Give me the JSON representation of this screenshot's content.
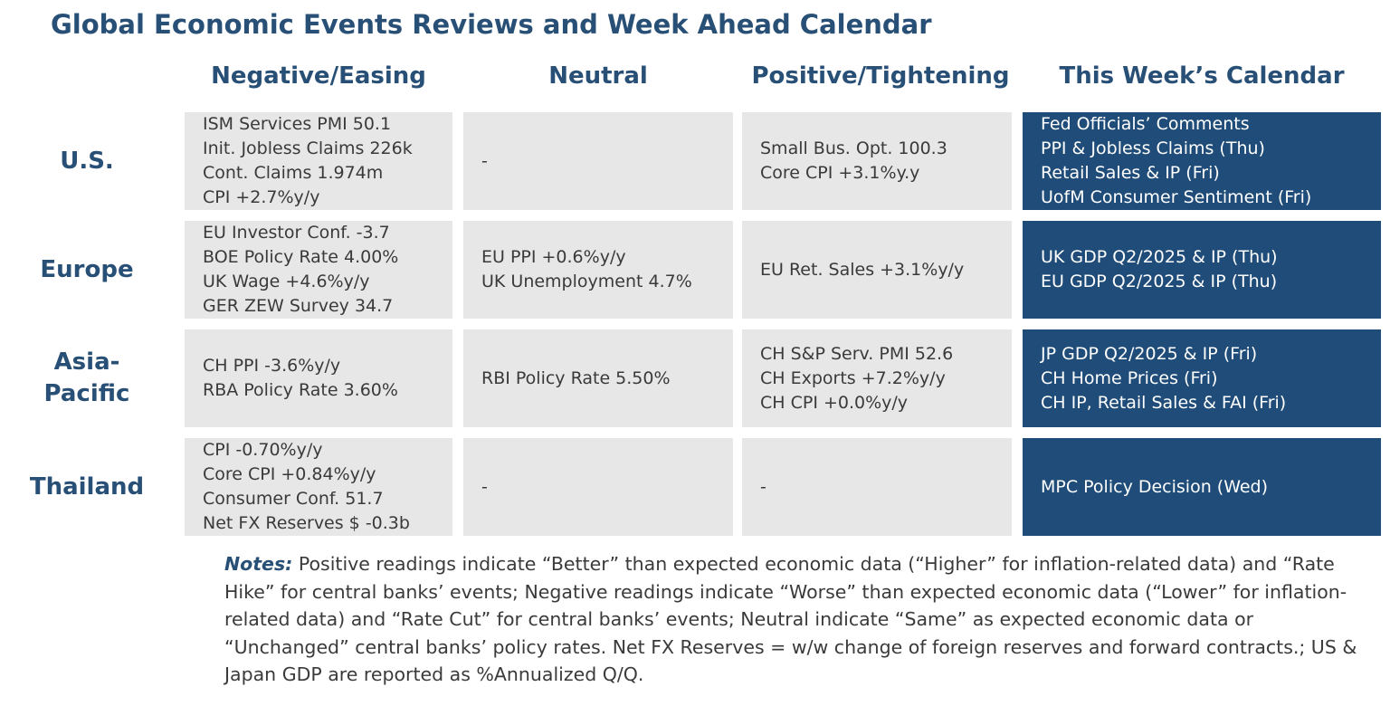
{
  "title": "Global Economic Events Reviews and Week Ahead Calendar",
  "columns": {
    "negative": "Negative/Easing",
    "neutral": "Neutral",
    "positive": "Positive/Tightening",
    "calendar": "This Week’s Calendar"
  },
  "rows": {
    "us": {
      "label": "U.S.",
      "negative": [
        "ISM Services PMI 50.1",
        "Init. Jobless Claims 226k",
        "Cont. Claims 1.974m",
        "CPI +2.7%y/y"
      ],
      "neutral": [
        "-"
      ],
      "positive": [
        "Small Bus. Opt. 100.3",
        "Core CPI +3.1%y.y"
      ],
      "calendar": [
        "Fed Officials’ Comments",
        "PPI & Jobless Claims (Thu)",
        "Retail Sales & IP (Fri)",
        "UofM Consumer Sentiment (Fri)"
      ]
    },
    "europe": {
      "label": "Europe",
      "negative": [
        "EU Investor Conf. -3.7",
        "BOE Policy Rate 4.00%",
        "UK Wage +4.6%y/y",
        "GER ZEW Survey 34.7"
      ],
      "neutral": [
        "EU PPI +0.6%y/y",
        "UK Unemployment 4.7%"
      ],
      "positive": [
        "EU Ret. Sales +3.1%y/y"
      ],
      "calendar": [
        "UK GDP Q2/2025 & IP (Thu)",
        "EU GDP Q2/2025 & IP (Thu)"
      ]
    },
    "asia": {
      "label_line1": "Asia-",
      "label_line2": "Pacific",
      "negative": [
        "CH PPI -3.6%y/y",
        "RBA Policy Rate 3.60%"
      ],
      "neutral": [
        "RBI Policy Rate 5.50%"
      ],
      "positive": [
        "CH S&P Serv. PMI 52.6",
        "CH Exports +7.2%y/y",
        "CH CPI +0.0%y/y"
      ],
      "calendar": [
        "JP GDP Q2/2025 & IP (Fri)",
        "CH Home Prices (Fri)",
        "CH IP, Retail Sales & FAI (Fri)"
      ]
    },
    "thailand": {
      "label": "Thailand",
      "negative": [
        "CPI -0.70%y/y",
        "Core CPI +0.84%y/y",
        "Consumer Conf. 51.7",
        "Net FX Reserves $ -0.3b"
      ],
      "neutral": [
        "-"
      ],
      "positive": [
        "-"
      ],
      "calendar": [
        "MPC Policy Decision (Wed)"
      ]
    }
  },
  "notes": {
    "label": "Notes:",
    "text": " Positive readings indicate “Better” than expected economic data (“Higher” for inflation-related data) and “Rate Hike” for central banks’ events; Negative readings indicate “Worse” than expected economic data (“Lower” for inflation-related data) and “Rate Cut” for central banks’ events; Neutral indicate “Same” as expected economic data or “Unchanged” central banks’ policy rates. Net FX Reserves = w/w change of foreign reserves and forward contracts.; US & Japan GDP are reported as %Annualized Q/Q."
  },
  "colors": {
    "heading": "#284f75",
    "calendar_bg": "#1f4c78",
    "cell_bg": "#e7e7e8",
    "body_text": "#3a3a3a"
  }
}
